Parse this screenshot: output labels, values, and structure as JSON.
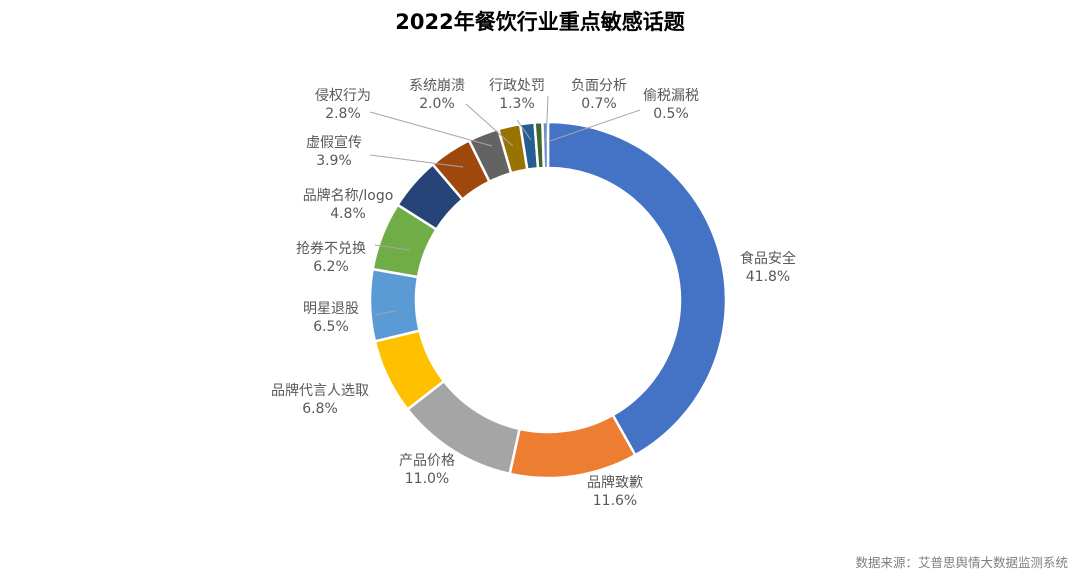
{
  "chart_data": {
    "type": "pie",
    "subtype": "donut",
    "title": "2022年餐饮行业重点敏感话题",
    "unit": "%",
    "slices": [
      {
        "label": "食品安全",
        "value": 41.8,
        "display": "41.8%",
        "color": "#4472C4"
      },
      {
        "label": "品牌致歉",
        "value": 11.6,
        "display": "11.6%",
        "color": "#ED7D31"
      },
      {
        "label": "产品价格",
        "value": 11.0,
        "display": "11.0%",
        "color": "#A5A5A5"
      },
      {
        "label": "品牌代言人选取",
        "value": 6.8,
        "display": "6.8%",
        "color": "#FFC000"
      },
      {
        "label": "明星退股",
        "value": 6.5,
        "display": "6.5%",
        "color": "#5B9BD5"
      },
      {
        "label": "抢券不兑换",
        "value": 6.2,
        "display": "6.2%",
        "color": "#70AD47"
      },
      {
        "label": "品牌名称/logo",
        "value": 4.8,
        "display": "4.8%",
        "color": "#264478"
      },
      {
        "label": "虚假宣传",
        "value": 3.9,
        "display": "3.9%",
        "color": "#9E480E"
      },
      {
        "label": "侵权行为",
        "value": 2.8,
        "display": "2.8%",
        "color": "#636363"
      },
      {
        "label": "系统崩溃",
        "value": 2.0,
        "display": "2.0%",
        "color": "#997300"
      },
      {
        "label": "行政处罚",
        "value": 1.3,
        "display": "1.3%",
        "color": "#255E91"
      },
      {
        "label": "负面分析",
        "value": 0.7,
        "display": "0.7%",
        "color": "#43682B"
      },
      {
        "label": "偷税漏税",
        "value": 0.5,
        "display": "0.5%",
        "color": "#698ED0"
      }
    ],
    "source": "数据来源：艾普思舆情大数据监测系统"
  }
}
